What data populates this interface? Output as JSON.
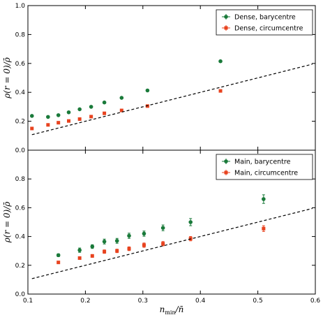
{
  "chart_data": [
    {
      "type": "scatter",
      "panel": "top",
      "ylabel": "ρ(r = 0)/ρ̄",
      "xlim": [
        0.1,
        0.6
      ],
      "ylim": [
        0.0,
        1.0
      ],
      "yticks": [
        "0.0",
        "0.2",
        "0.4",
        "0.6",
        "0.8",
        "1.0"
      ],
      "legend_position": "top-right",
      "series": [
        {
          "name": "Dense, barycentre",
          "color": "#1a7a3a",
          "marker": "circle",
          "x": [
            0.107,
            0.135,
            0.153,
            0.171,
            0.19,
            0.21,
            0.233,
            0.263,
            0.308,
            0.435
          ],
          "y": [
            0.237,
            0.23,
            0.242,
            0.262,
            0.283,
            0.3,
            0.33,
            0.362,
            0.413,
            0.615
          ]
        },
        {
          "name": "Dense, circumcentre",
          "color": "#e8431f",
          "marker": "square",
          "x": [
            0.107,
            0.135,
            0.153,
            0.171,
            0.19,
            0.21,
            0.233,
            0.263,
            0.308,
            0.435
          ],
          "y": [
            0.15,
            0.175,
            0.19,
            0.202,
            0.215,
            0.232,
            0.255,
            0.275,
            0.305,
            0.41
          ]
        },
        {
          "name": "",
          "style": "dashed",
          "color": "#000000",
          "x": [
            0.107,
            0.595
          ],
          "y": [
            0.107,
            0.595
          ]
        }
      ]
    },
    {
      "type": "scatter",
      "panel": "bottom",
      "xlabel": "n_min/n̄",
      "ylabel": "ρ(r = 0)/ρ̄",
      "xlim": [
        0.1,
        0.6
      ],
      "ylim": [
        0.0,
        1.0
      ],
      "xticks": [
        "0.1",
        "0.2",
        "0.3",
        "0.4",
        "0.5",
        "0.6"
      ],
      "yticks": [
        "0.0",
        "0.2",
        "0.4",
        "0.6",
        "0.8"
      ],
      "legend_position": "top-right",
      "series": [
        {
          "name": "Main, barycentre",
          "color": "#1a7a3a",
          "marker": "circle",
          "x": [
            0.153,
            0.19,
            0.212,
            0.233,
            0.255,
            0.276,
            0.302,
            0.335,
            0.383,
            0.51
          ],
          "y": [
            0.27,
            0.305,
            0.33,
            0.365,
            0.37,
            0.405,
            0.42,
            0.46,
            0.5,
            0.66
          ],
          "yerr": [
            0.01,
            0.015,
            0.013,
            0.017,
            0.017,
            0.018,
            0.018,
            0.02,
            0.025,
            0.03
          ]
        },
        {
          "name": "Main, circumcentre",
          "color": "#e8431f",
          "marker": "square",
          "x": [
            0.153,
            0.19,
            0.212,
            0.233,
            0.255,
            0.276,
            0.302,
            0.335,
            0.383,
            0.51
          ],
          "y": [
            0.22,
            0.25,
            0.265,
            0.295,
            0.3,
            0.315,
            0.34,
            0.35,
            0.385,
            0.455
          ],
          "yerr": [
            0.008,
            0.01,
            0.01,
            0.012,
            0.012,
            0.013,
            0.015,
            0.015,
            0.015,
            0.02
          ]
        },
        {
          "name": "",
          "style": "dashed",
          "color": "#000000",
          "x": [
            0.107,
            0.595
          ],
          "y": [
            0.107,
            0.595
          ]
        }
      ]
    }
  ]
}
